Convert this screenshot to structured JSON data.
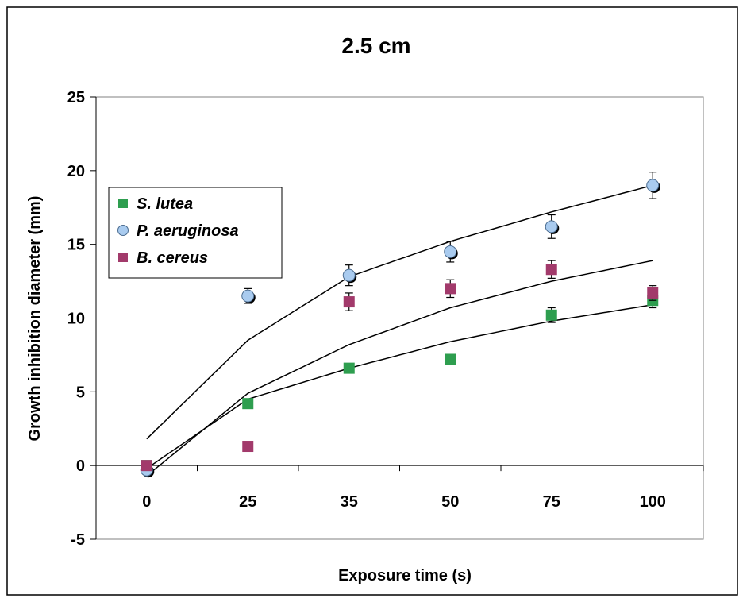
{
  "chart_data": {
    "type": "scatter",
    "title": "2.5 cm",
    "xlabel": "Exposure time (s)",
    "ylabel": "Growth inhibition diameter (mm)",
    "categories": [
      "0",
      "25",
      "35",
      "50",
      "75",
      "100"
    ],
    "ylim": [
      -5,
      25
    ],
    "yticks": [
      -5,
      0,
      5,
      10,
      15,
      20,
      25
    ],
    "grid": false,
    "legend_position": "upper-left",
    "series": [
      {
        "name": "S. lutea",
        "marker": "square",
        "color": "#2e9e4f",
        "values": [
          0,
          4.2,
          6.6,
          7.2,
          10.2,
          11.2
        ],
        "errors": [
          0,
          0.2,
          0.2,
          0.3,
          0.5,
          0.5
        ]
      },
      {
        "name": "P. aeruginosa",
        "marker": "circle",
        "color": "#a9cbef",
        "values": [
          -0.3,
          11.5,
          12.9,
          14.5,
          16.2,
          19
        ],
        "errors": [
          0.2,
          0.5,
          0.7,
          0.7,
          0.8,
          0.9
        ]
      },
      {
        "name": "B. cereus",
        "marker": "square",
        "color": "#a23a6b",
        "values": [
          0,
          1.3,
          11.1,
          12.0,
          13.3,
          11.7
        ],
        "errors": [
          0,
          0.1,
          0.6,
          0.6,
          0.6,
          0.5
        ]
      }
    ],
    "trendlines": [
      {
        "series": "P. aeruginosa",
        "values": [
          1.8,
          8.5,
          12.8,
          15.2,
          17.2,
          19.0
        ]
      },
      {
        "series": "B. cereus",
        "values": [
          -0.7,
          4.9,
          8.2,
          10.7,
          12.5,
          13.9
        ]
      },
      {
        "series": "S. lutea",
        "values": [
          -0.2,
          4.5,
          6.6,
          8.4,
          9.8,
          10.9
        ]
      }
    ]
  }
}
